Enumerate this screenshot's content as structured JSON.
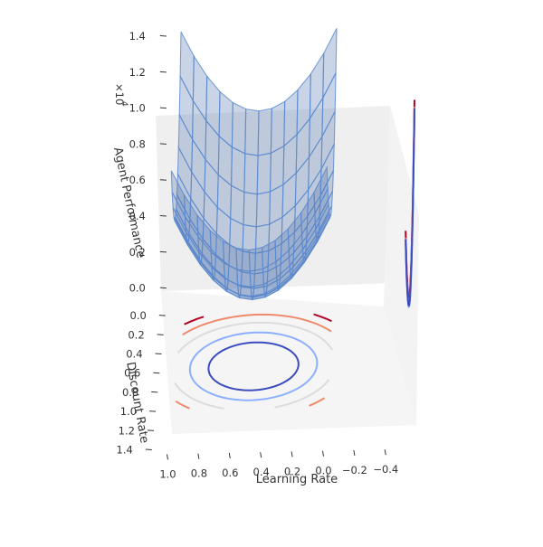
{
  "chart_data": {
    "type": "surface3d",
    "xlabel": "Learning Rate",
    "ylabel": "Discount Rate",
    "zlabel": "Agent Performance",
    "z_multiplier": "×10",
    "z_exponent": "4",
    "xlim": [
      -0.5,
      1.1
    ],
    "ylim": [
      -0.1,
      1.45
    ],
    "zlim": [
      -0.1,
      1.55
    ],
    "x_ticks": [
      "1.0",
      "0.8",
      "0.6",
      "0.4",
      "0.2",
      "0.0",
      "−0.2",
      "−0.4"
    ],
    "x_tick_values": [
      1.0,
      0.8,
      0.6,
      0.4,
      0.2,
      0.0,
      -0.2,
      -0.4
    ],
    "y_ticks": [
      "0.0",
      "0.2",
      "0.4",
      "0.6",
      "0.8",
      "1.0",
      "1.2",
      "1.4"
    ],
    "y_tick_values": [
      0.0,
      0.2,
      0.4,
      0.6,
      0.8,
      1.0,
      1.2,
      1.4
    ],
    "z_ticks": [
      "0.0",
      "0.2",
      "0.4",
      "0.6",
      "0.8",
      "1.0",
      "1.2",
      "1.4"
    ],
    "z_tick_values": [
      0.0,
      0.2,
      0.4,
      0.6,
      0.8,
      1.0,
      1.2,
      1.4
    ],
    "surface": {
      "description": "quadratic bowl of agent performance over learning rate and discount rate, drawn as a translucent blue surface with wireframe",
      "optimum": {
        "learning_rate": 0.5,
        "discount_rate": 0.55,
        "performance_e4": 0.3
      },
      "x_range": [
        0.0,
        1.0
      ],
      "y_range": [
        0.0,
        0.99
      ],
      "color": "#4c72b0"
    },
    "floor_contours": [
      {
        "level_e4": 1.2,
        "color": "#b40426"
      },
      {
        "level_e4": 1.0,
        "color": "#f08a6c"
      },
      {
        "level_e4": 0.8,
        "color": "#dcdcdc"
      },
      {
        "level_e4": 0.6,
        "color": "#8db0fe"
      },
      {
        "level_e4": 0.45,
        "color": "#3b4cc0"
      }
    ],
    "side_contours_x": [
      {
        "color": "#b40426"
      },
      {
        "color": "#f08a6c"
      },
      {
        "color": "#8db0fe"
      },
      {
        "color": "#3b4cc0"
      }
    ],
    "colormap": "coolwarm",
    "grid": false
  }
}
